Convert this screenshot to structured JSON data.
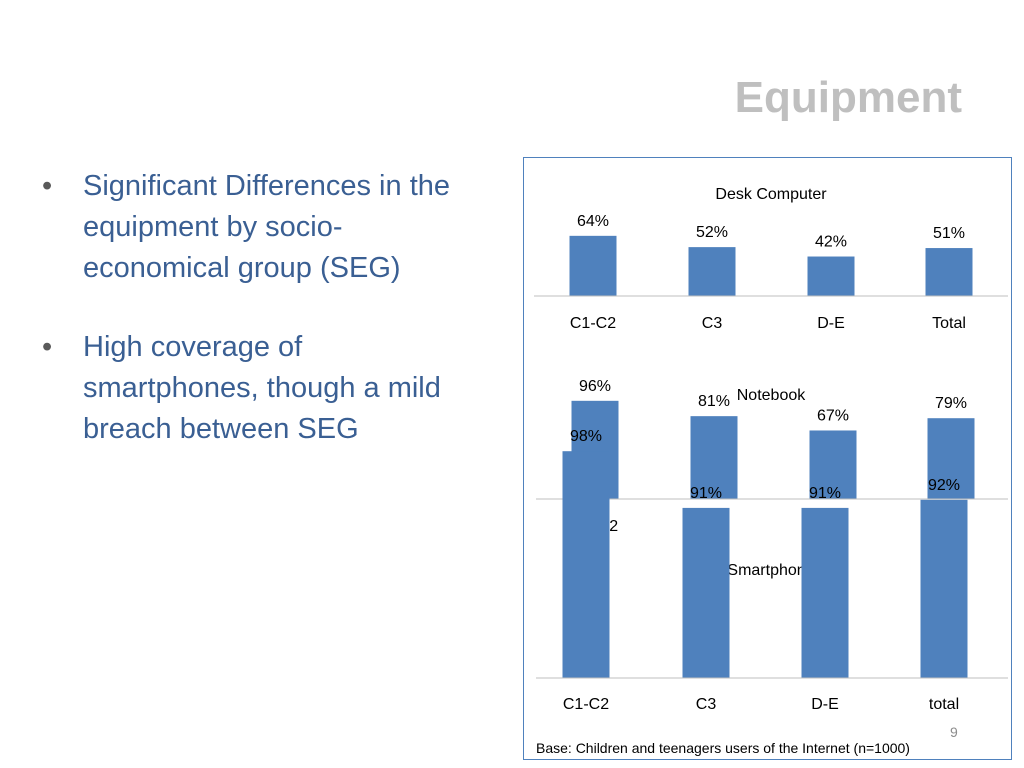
{
  "slide": {
    "title": "Equipment",
    "bullets": [
      "Significant Differences in the equipment by socio-economical group (SEG)",
      "High coverage of smartphones, though a mild breach between SEG"
    ],
    "bullet_char": "•",
    "base_note": "Base: Children and teenagers users of the Internet (n=1000)",
    "page_number": "9"
  },
  "colors": {
    "bar": "#4f81bd",
    "text": "#000000",
    "axis": "#bfbfbf",
    "title": "#bfbfbf",
    "bullet_text": "#3a5f93"
  },
  "chart_data": [
    {
      "type": "bar",
      "title": "Desk Computer",
      "categories": [
        "C1-C2",
        "C3",
        "D-E",
        "Total"
      ],
      "values": [
        64,
        52,
        42,
        51
      ],
      "value_labels": [
        "64%",
        "52%",
        "42%",
        "51%"
      ],
      "ylim": [
        0,
        250
      ],
      "legend": "none",
      "grid": false
    },
    {
      "type": "bar",
      "title": "Notebook",
      "categories": [
        "C1-C2",
        "C3",
        "D-E",
        "Total"
      ],
      "values": [
        96,
        81,
        67,
        79
      ],
      "value_labels": [
        "96%",
        "81%",
        "67%",
        "79%"
      ],
      "ylim": [
        0,
        220
      ],
      "legend": "none",
      "grid": false
    },
    {
      "type": "bar",
      "title": "Smartphone",
      "categories": [
        "C1-C2",
        "C3",
        "D-E",
        "total"
      ],
      "values": [
        98,
        91,
        91,
        92
      ],
      "value_labels": [
        "98%",
        "91%",
        "91%",
        "92%"
      ],
      "ylim": [
        70,
        100
      ],
      "legend": "none",
      "grid": false
    }
  ]
}
